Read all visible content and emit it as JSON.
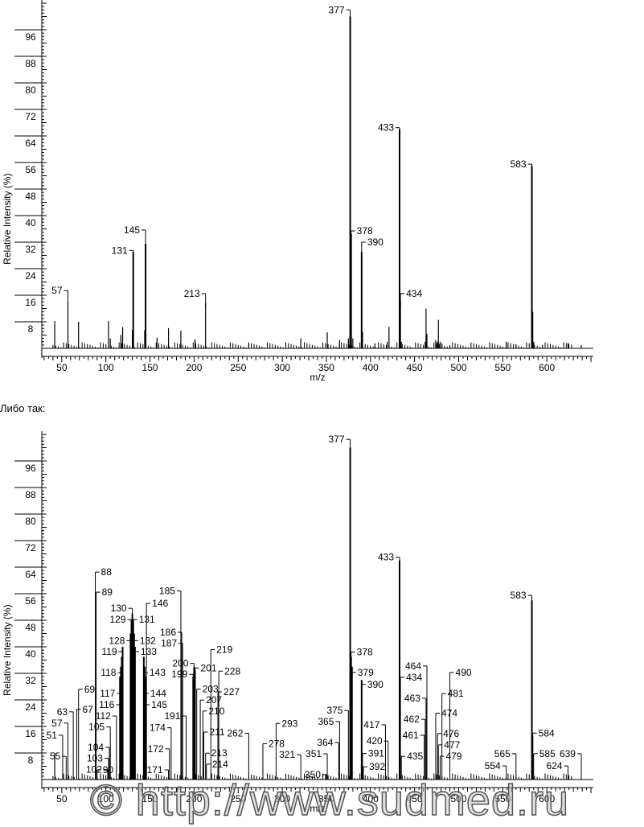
{
  "separator_text": "Либо так:",
  "watermark": "© http://www.sudmed.ru",
  "chart_data": [
    {
      "type": "bar",
      "title": "",
      "xlabel": "m/z",
      "ylabel": "Relative Intensity (%)",
      "xlim": [
        28,
        650
      ],
      "ylim": [
        0,
        104
      ],
      "x_ticks": [
        50,
        100,
        150,
        200,
        250,
        300,
        350,
        400,
        450,
        500,
        550,
        600
      ],
      "y_ticks": [
        8,
        16,
        24,
        32,
        40,
        48,
        56,
        64,
        72,
        80,
        88,
        96
      ],
      "peaks": [
        [
          42,
          8.2
        ],
        [
          57,
          14
        ],
        [
          69,
          8
        ],
        [
          103,
          8.2
        ],
        [
          105,
          3
        ],
        [
          117,
          4
        ],
        [
          119,
          6.4
        ],
        [
          130,
          5.6
        ],
        [
          131,
          29
        ],
        [
          144,
          5.5
        ],
        [
          145,
          31.5
        ],
        [
          158,
          3.2
        ],
        [
          171,
          6.1
        ],
        [
          185,
          5.3
        ],
        [
          201,
          2.7
        ],
        [
          213,
          13.6
        ],
        [
          262,
          1.5
        ],
        [
          321,
          3
        ],
        [
          351,
          4.8
        ],
        [
          365,
          2.5
        ],
        [
          375,
          3
        ],
        [
          377,
          100
        ],
        [
          378,
          34.5
        ],
        [
          380,
          3
        ],
        [
          390,
          29
        ],
        [
          391,
          5
        ],
        [
          405,
          1.5
        ],
        [
          419,
          2
        ],
        [
          421,
          6.5
        ],
        [
          433,
          66
        ],
        [
          434,
          14.3
        ],
        [
          435,
          2
        ],
        [
          462,
          2
        ],
        [
          463,
          12
        ],
        [
          464,
          4.4
        ],
        [
          474,
          2.5
        ],
        [
          476,
          2
        ],
        [
          477,
          8.6
        ],
        [
          479,
          2
        ],
        [
          481,
          1.5
        ],
        [
          490,
          1
        ],
        [
          554,
          2
        ],
        [
          565,
          1.2
        ],
        [
          583,
          55
        ],
        [
          584,
          11
        ],
        [
          585,
          2
        ],
        [
          595,
          1
        ],
        [
          624,
          1.6
        ],
        [
          639,
          1
        ]
      ],
      "labels": [
        {
          "mz": "57",
          "level": 17.4,
          "side": "left"
        },
        {
          "mz": "131",
          "level": 29.5,
          "side": "left"
        },
        {
          "mz": "145",
          "level": 32.5,
          "side": "left"
        },
        {
          "mz": "213",
          "level": 16.5,
          "side": "left"
        },
        {
          "mz": "377",
          "level": 102,
          "side": "left"
        },
        {
          "mz": "378",
          "level": 35.4,
          "side": "right"
        },
        {
          "mz": "390",
          "level": 32,
          "side": "right"
        },
        {
          "mz": "433",
          "level": 66.5,
          "side": "left"
        },
        {
          "mz": "434",
          "level": 16.5,
          "side": "right"
        },
        {
          "mz": "583",
          "level": 55.5,
          "side": "left"
        }
      ]
    },
    {
      "type": "bar",
      "title": "",
      "xlabel": "m/z",
      "ylabel": "Relative Intensity (%)",
      "xlim": [
        28,
        650
      ],
      "ylim": [
        0,
        104
      ],
      "x_ticks": [
        50,
        100,
        150,
        200,
        250,
        300,
        350,
        400,
        450,
        500,
        550,
        600
      ],
      "y_ticks": [
        8,
        16,
        24,
        32,
        40,
        48,
        56,
        64,
        72,
        80,
        88,
        96
      ],
      "peaks": [
        [
          42,
          8
        ],
        [
          116,
          31
        ],
        [
          117,
          34
        ],
        [
          118,
          37
        ],
        [
          119,
          40
        ],
        [
          128,
          44
        ],
        [
          129,
          48
        ],
        [
          130,
          50
        ],
        [
          131,
          48
        ],
        [
          132,
          44
        ],
        [
          133,
          40
        ],
        [
          143,
          37
        ],
        [
          144,
          34
        ],
        [
          145,
          31
        ],
        [
          199,
          31
        ],
        [
          200,
          34
        ],
        [
          201,
          33
        ],
        [
          377,
          100
        ],
        [
          378,
          37
        ],
        [
          379,
          34
        ],
        [
          390,
          30
        ],
        [
          433,
          66
        ],
        [
          583,
          54
        ],
        [
          584,
          13
        ]
      ],
      "labels": [
        {
          "mz": "377",
          "level": 102.5,
          "side": "left"
        },
        {
          "mz": "433",
          "level": 67,
          "side": "left"
        },
        {
          "mz": "583",
          "level": 55.5,
          "side": "left"
        },
        {
          "mz": "130",
          "level": 51.6,
          "side": "left"
        },
        {
          "mz": "129",
          "level": 48.2,
          "side": "left"
        },
        {
          "mz": "131",
          "level": 48.2,
          "side": "right"
        },
        {
          "mz": "128",
          "level": 45,
          "side": "left"
        },
        {
          "mz": "132",
          "level": 45,
          "side": "right"
        },
        {
          "mz": "119",
          "level": 41.7,
          "side": "left"
        },
        {
          "mz": "133",
          "level": 41.7,
          "side": "right"
        },
        {
          "mz": "118",
          "level": 38.5,
          "side": "left"
        },
        {
          "mz": "143",
          "level": 38.5,
          "side": "right"
        },
        {
          "mz": "117",
          "level": 35.4,
          "side": "left"
        },
        {
          "mz": "144",
          "level": 35.4,
          "side": "right"
        },
        {
          "mz": "116",
          "level": 32,
          "side": "left"
        },
        {
          "mz": "145",
          "level": 32,
          "side": "right"
        },
        {
          "mz": "112",
          "level": 28.6,
          "side": "left"
        },
        {
          "mz": "105",
          "level": 25.3,
          "side": "left"
        },
        {
          "mz": "104",
          "level": 22.3,
          "side": "left"
        },
        {
          "mz": "103",
          "level": 19,
          "side": "left"
        },
        {
          "mz": "102",
          "level": 15.6,
          "side": "left"
        },
        {
          "mz": "63",
          "level": 20.4,
          "side": "left"
        },
        {
          "mz": "57",
          "level": 17,
          "side": "left"
        },
        {
          "mz": "67",
          "level": 18,
          "side": "right"
        },
        {
          "mz": "69",
          "level": 14.6,
          "side": "right"
        },
        {
          "mz": "90",
          "level": 12.4,
          "side": "right"
        },
        {
          "mz": "89",
          "level": 9.2,
          "side": "right"
        },
        {
          "mz": "88",
          "level": 5.8,
          "side": "right"
        },
        {
          "mz": "55",
          "level": 7,
          "side": "left"
        },
        {
          "mz": "51",
          "level": 3.9,
          "side": "left"
        },
        {
          "mz": "174",
          "level": 15.6,
          "side": "left"
        },
        {
          "mz": "172",
          "level": 12.4,
          "side": "left"
        },
        {
          "mz": "171",
          "level": 9.2,
          "side": "left"
        },
        {
          "mz": "146",
          "level": 5.8,
          "side": "right"
        },
        {
          "mz": "200",
          "level": 35,
          "side": "left"
        },
        {
          "mz": "199",
          "level": 31.7,
          "side": "left"
        },
        {
          "mz": "191",
          "level": 28.6,
          "side": "left"
        },
        {
          "mz": "187",
          "level": 25.3,
          "side": "left"
        },
        {
          "mz": "186",
          "level": 22.3,
          "side": "left"
        },
        {
          "mz": "185",
          "level": 19,
          "side": "left"
        },
        {
          "mz": "201",
          "level": 33.6,
          "side": "right"
        },
        {
          "mz": "203",
          "level": 30.4,
          "side": "right"
        },
        {
          "mz": "207",
          "level": 27.1,
          "side": "right"
        },
        {
          "mz": "210",
          "level": 23.8,
          "side": "right"
        },
        {
          "mz": "211",
          "level": 20.6,
          "side": "right"
        },
        {
          "mz": "213",
          "level": 17.4,
          "side": "right"
        },
        {
          "mz": "214",
          "level": 14.1,
          "side": "right"
        },
        {
          "mz": "219",
          "level": 10.8,
          "side": "right"
        },
        {
          "mz": "262",
          "level": 10.8,
          "side": "left"
        },
        {
          "mz": "227",
          "level": 7.5,
          "side": "right"
        },
        {
          "mz": "228",
          "level": 4.3,
          "side": "right"
        },
        {
          "mz": "278",
          "level": 10.8,
          "side": "right"
        },
        {
          "mz": "321",
          "level": 7.5,
          "side": "left"
        },
        {
          "mz": "293",
          "level": 4.3,
          "side": "right"
        },
        {
          "mz": "378",
          "level": 38.4,
          "side": "right"
        },
        {
          "mz": "379",
          "level": 35.4,
          "side": "right"
        },
        {
          "mz": "390",
          "level": 31.8,
          "side": "right"
        },
        {
          "mz": "375",
          "level": 20.8,
          "side": "left"
        },
        {
          "mz": "365",
          "level": 17.5,
          "side": "left"
        },
        {
          "mz": "364",
          "level": 14.3,
          "side": "left"
        },
        {
          "mz": "351",
          "level": 10.9,
          "side": "left"
        },
        {
          "mz": "350",
          "level": 7.8,
          "side": "left"
        },
        {
          "mz": "420",
          "level": 11.6,
          "side": "left"
        },
        {
          "mz": "391",
          "level": 11,
          "side": "right"
        },
        {
          "mz": "392",
          "level": 7,
          "side": "right"
        },
        {
          "mz": "417",
          "level": 3.9,
          "side": "left"
        },
        {
          "mz": "435",
          "level": 7,
          "side": "right"
        },
        {
          "mz": "461",
          "level": 3.9,
          "side": "left"
        },
        {
          "mz": "462",
          "level": 15,
          "side": "left"
        },
        {
          "mz": "463",
          "level": 18.2,
          "side": "left"
        },
        {
          "mz": "434",
          "level": 18.2,
          "side": "right"
        },
        {
          "mz": "464",
          "level": 21.6,
          "side": "left"
        },
        {
          "mz": "474",
          "level": 20,
          "side": "right"
        },
        {
          "mz": "476",
          "level": 17,
          "side": "right"
        },
        {
          "mz": "477",
          "level": 13.6,
          "side": "right"
        },
        {
          "mz": "479",
          "level": 10.2,
          "side": "right"
        },
        {
          "mz": "481",
          "level": 7,
          "side": "right"
        },
        {
          "mz": "490",
          "level": 3.9,
          "side": "right"
        },
        {
          "mz": "565",
          "level": 7.8,
          "side": "left"
        },
        {
          "mz": "554",
          "level": 4.1,
          "side": "left"
        },
        {
          "mz": "584",
          "level": 14,
          "side": "right"
        },
        {
          "mz": "585",
          "level": 7.8,
          "side": "right"
        },
        {
          "mz": "639",
          "level": 7.8,
          "side": "left"
        },
        {
          "mz": "624",
          "level": 4.1,
          "side": "left"
        }
      ]
    }
  ]
}
